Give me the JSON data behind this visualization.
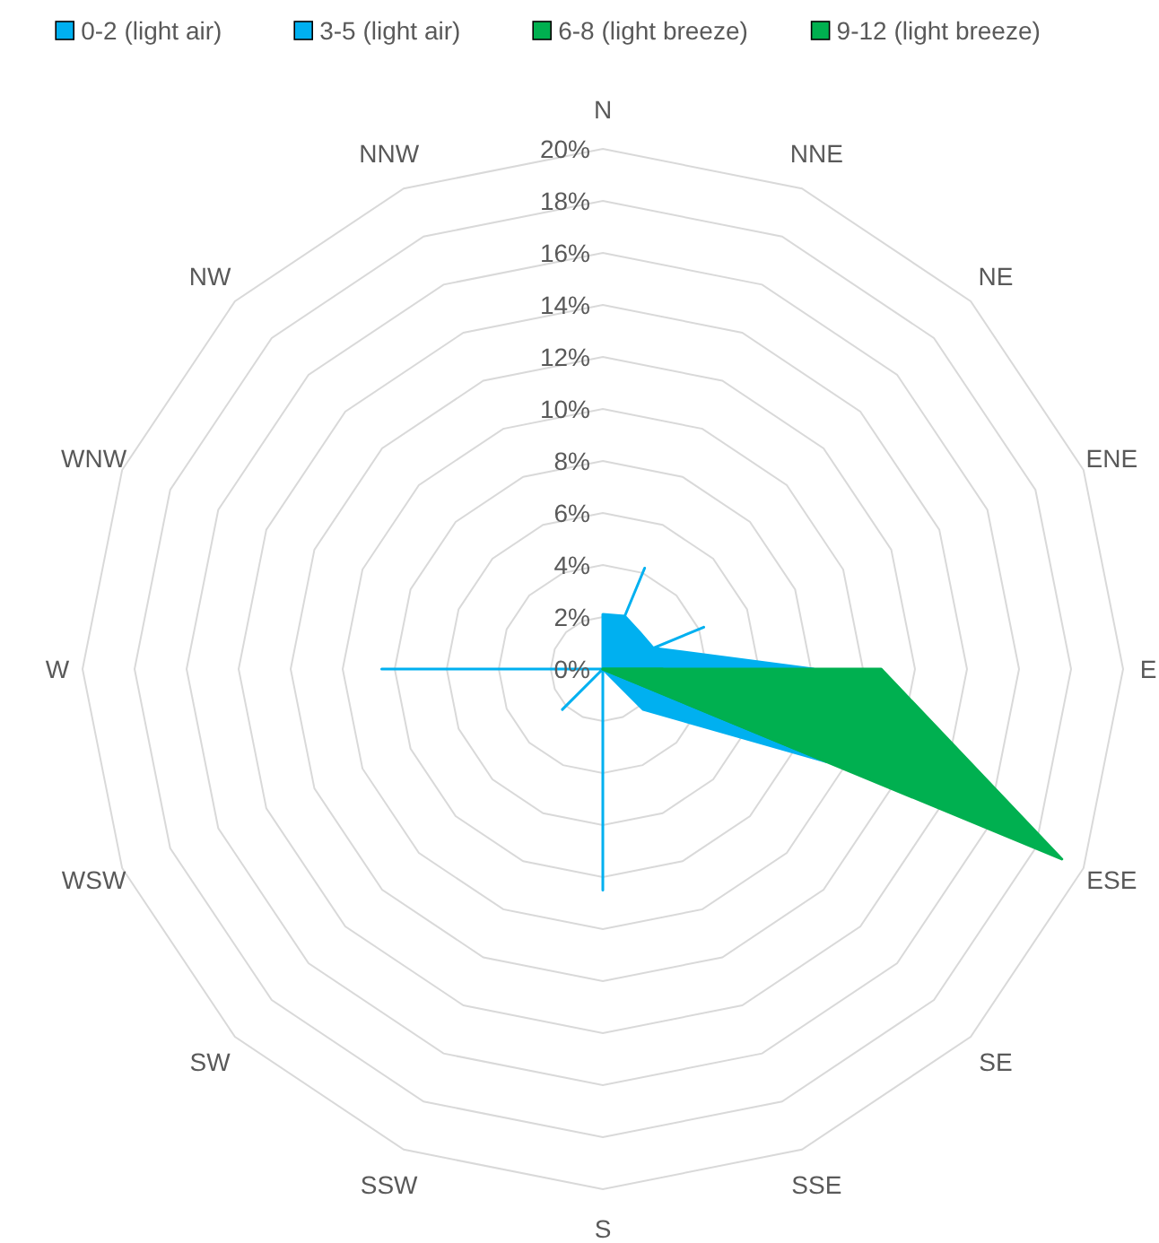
{
  "chart_data": {
    "type": "radar",
    "categories": [
      "N",
      "NNE",
      "NE",
      "ENE",
      "E",
      "ESE",
      "SE",
      "SSE",
      "S",
      "SSW",
      "SW",
      "WSW",
      "W",
      "WNW",
      "NW",
      "NNW"
    ],
    "series": [
      {
        "name": "0-2 (light air)",
        "color": "#00b0f0",
        "values": [
          0,
          4.2,
          0,
          4.2,
          0,
          0,
          0,
          0,
          8.5,
          0,
          2.2,
          0,
          8.5,
          0,
          0,
          0
        ]
      },
      {
        "name": "3-5 (light air)",
        "color": "#00b0f0",
        "values": [
          2.1,
          2.2,
          2,
          2.1,
          8.1,
          9.3,
          2.2,
          0,
          0,
          0,
          0,
          0,
          0,
          0,
          0,
          0
        ]
      },
      {
        "name": "6-8 (light breeze)",
        "color": "#00b050",
        "values": [
          0,
          0,
          0,
          0,
          2.3,
          9,
          0,
          0,
          0,
          0,
          0,
          0,
          0,
          0,
          0,
          0
        ]
      },
      {
        "name": "9-12 (light breeze)",
        "color": "#00b050",
        "values": [
          0,
          0,
          0,
          0,
          10.7,
          19.1,
          0,
          0,
          0,
          0,
          0,
          0,
          0,
          0,
          0,
          0
        ]
      }
    ],
    "ylim": [
      0,
      20
    ],
    "yticks": [
      {
        "value": 0,
        "label": "0%"
      },
      {
        "value": 2,
        "label": "2%"
      },
      {
        "value": 4,
        "label": "4%"
      },
      {
        "value": 6,
        "label": "6%"
      },
      {
        "value": 8,
        "label": "8%"
      },
      {
        "value": 10,
        "label": "10%"
      },
      {
        "value": 12,
        "label": "12%"
      },
      {
        "value": 14,
        "label": "14%"
      },
      {
        "value": 16,
        "label": "16%"
      },
      {
        "value": 18,
        "label": "18%"
      },
      {
        "value": 20,
        "label": "20%"
      }
    ],
    "grid": true,
    "legend": "top"
  }
}
